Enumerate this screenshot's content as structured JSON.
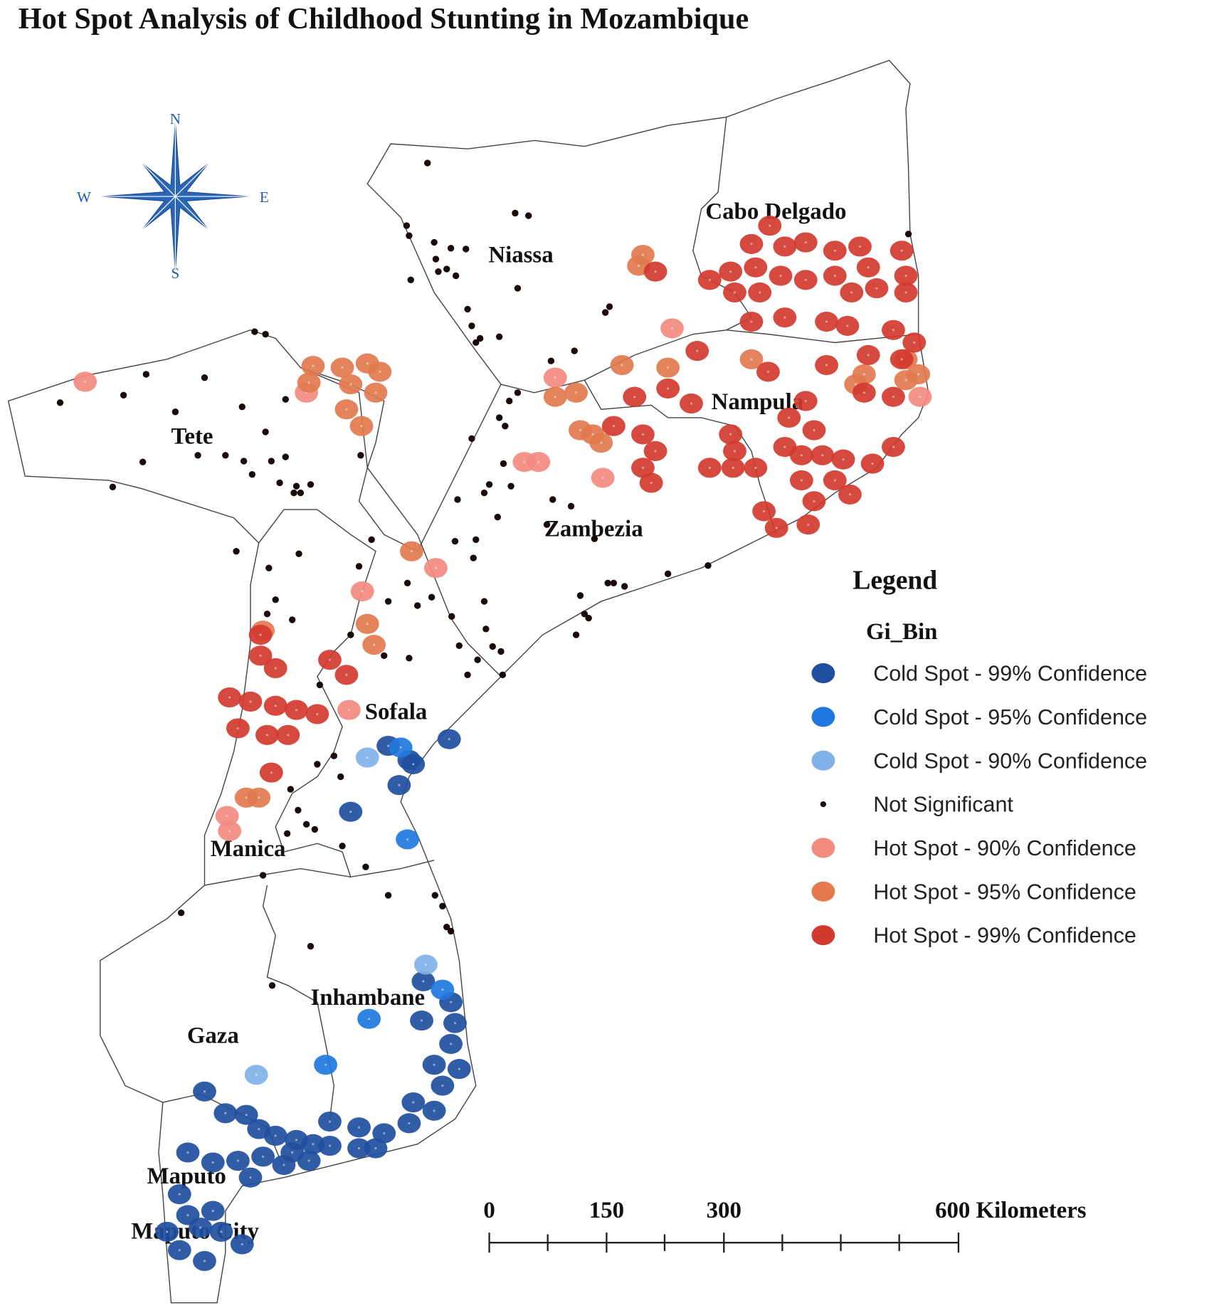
{
  "title": "Hot Spot Analysis of Childhood Stunting in Mozambique",
  "compass": {
    "n": "N",
    "e": "E",
    "s": "S",
    "w": "W"
  },
  "regions": [
    {
      "label": "Cabo Delgado"
    },
    {
      "label": "Niassa"
    },
    {
      "label": "Nampula"
    },
    {
      "label": "Tete"
    },
    {
      "label": "Zambezia"
    },
    {
      "label": "Sofala"
    },
    {
      "label": "Manica"
    },
    {
      "label": "Inhambane"
    },
    {
      "label": "Gaza"
    },
    {
      "label": "Maputo"
    },
    {
      "label": "Maputo City"
    }
  ],
  "legend": {
    "title": "Legend",
    "field": "Gi_Bin",
    "items": [
      {
        "label": "Cold Spot - 99% Confidence",
        "color": "#1f4f9e"
      },
      {
        "label": "Cold Spot - 95% Confidence",
        "color": "#1f78e0"
      },
      {
        "label": "Cold Spot - 90% Confidence",
        "color": "#80b2e8"
      },
      {
        "label": "Not Significant",
        "color": "#1a0a0a"
      },
      {
        "label": "Hot Spot - 90% Confidence",
        "color": "#f28a80"
      },
      {
        "label": "Hot Spot - 95% Confidence",
        "color": "#e27a4e"
      },
      {
        "label": "Hot Spot - 99% Confidence",
        "color": "#d33a2e"
      }
    ]
  },
  "scale_bar": {
    "ticks": [
      0,
      150,
      300,
      {
        "value": 600,
        "label": "600 Kilometers"
      }
    ]
  }
}
